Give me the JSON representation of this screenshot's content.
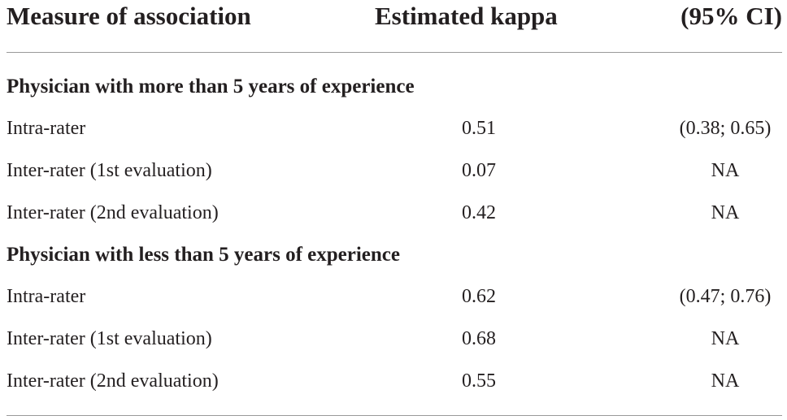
{
  "header": {
    "measure": "Measure of association",
    "kappa": "Estimated kappa",
    "ci": "(95% CI)"
  },
  "sections": [
    {
      "title": "Physician with more than 5 years of experience",
      "rows": [
        {
          "label": "Intra-rater",
          "kappa": "0.51",
          "ci": "(0.38; 0.65)"
        },
        {
          "label": "Inter-rater (1st evaluation)",
          "kappa": "0.07",
          "ci": "NA"
        },
        {
          "label": "Inter-rater (2nd evaluation)",
          "kappa": "0.42",
          "ci": "NA"
        }
      ]
    },
    {
      "title": "Physician with less than 5 years of experience",
      "rows": [
        {
          "label": "Intra-rater",
          "kappa": "0.62",
          "ci": "(0.47; 0.76)"
        },
        {
          "label": "Inter-rater (1st evaluation)",
          "kappa": "0.68",
          "ci": "NA"
        },
        {
          "label": "Inter-rater (2nd evaluation)",
          "kappa": "0.55",
          "ci": "NA"
        }
      ]
    }
  ]
}
